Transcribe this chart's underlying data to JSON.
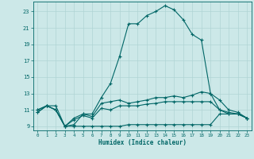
{
  "xlabel": "Humidex (Indice chaleur)",
  "xlim": [
    -0.5,
    23.5
  ],
  "ylim": [
    8.5,
    24.2
  ],
  "yticks": [
    9,
    11,
    13,
    15,
    17,
    19,
    21,
    23
  ],
  "xticks": [
    0,
    1,
    2,
    3,
    4,
    5,
    6,
    7,
    8,
    9,
    10,
    11,
    12,
    13,
    14,
    15,
    16,
    17,
    18,
    19,
    20,
    21,
    22,
    23
  ],
  "bg_color": "#cce8e8",
  "grid_color": "#b0d4d4",
  "line_color": "#006666",
  "line1_x": [
    0,
    1,
    2,
    3,
    4,
    5,
    6,
    7,
    8,
    9,
    10,
    11,
    12,
    13,
    14,
    15,
    16,
    17,
    18,
    19,
    20,
    21,
    22,
    23
  ],
  "line1_y": [
    10.7,
    11.5,
    11.5,
    9.0,
    10.0,
    10.5,
    10.5,
    12.5,
    14.2,
    17.5,
    21.5,
    21.5,
    22.5,
    23.0,
    23.7,
    23.2,
    22.0,
    20.2,
    19.5,
    13.0,
    11.0,
    10.7,
    10.5,
    10.0
  ],
  "line2_x": [
    0,
    1,
    2,
    3,
    4,
    5,
    6,
    7,
    8,
    9,
    10,
    11,
    12,
    13,
    14,
    15,
    16,
    17,
    18,
    19,
    20,
    21,
    22,
    23
  ],
  "line2_y": [
    11.0,
    11.5,
    11.0,
    9.0,
    9.2,
    10.5,
    10.2,
    11.8,
    12.0,
    12.2,
    11.8,
    12.0,
    12.2,
    12.5,
    12.5,
    12.7,
    12.5,
    12.8,
    13.2,
    13.0,
    12.2,
    11.0,
    10.7,
    10.0
  ],
  "line3_x": [
    0,
    1,
    2,
    3,
    4,
    5,
    6,
    7,
    8,
    9,
    10,
    11,
    12,
    13,
    14,
    15,
    16,
    17,
    18,
    19,
    20,
    21,
    22,
    23
  ],
  "line3_y": [
    11.0,
    11.5,
    11.0,
    9.0,
    9.8,
    10.3,
    10.0,
    11.2,
    11.0,
    11.5,
    11.5,
    11.5,
    11.7,
    11.8,
    12.0,
    12.0,
    12.0,
    12.0,
    12.0,
    12.0,
    11.0,
    10.5,
    10.5,
    10.0
  ],
  "line4_x": [
    0,
    1,
    2,
    3,
    4,
    5,
    6,
    7,
    8,
    9,
    10,
    11,
    12,
    13,
    14,
    15,
    16,
    17,
    18,
    19,
    20,
    21,
    22,
    23
  ],
  "line4_y": [
    10.7,
    11.5,
    11.0,
    9.0,
    9.0,
    9.0,
    9.0,
    9.0,
    9.0,
    9.0,
    9.2,
    9.2,
    9.2,
    9.2,
    9.2,
    9.2,
    9.2,
    9.2,
    9.2,
    9.2,
    10.5,
    10.5,
    10.5,
    10.0
  ]
}
